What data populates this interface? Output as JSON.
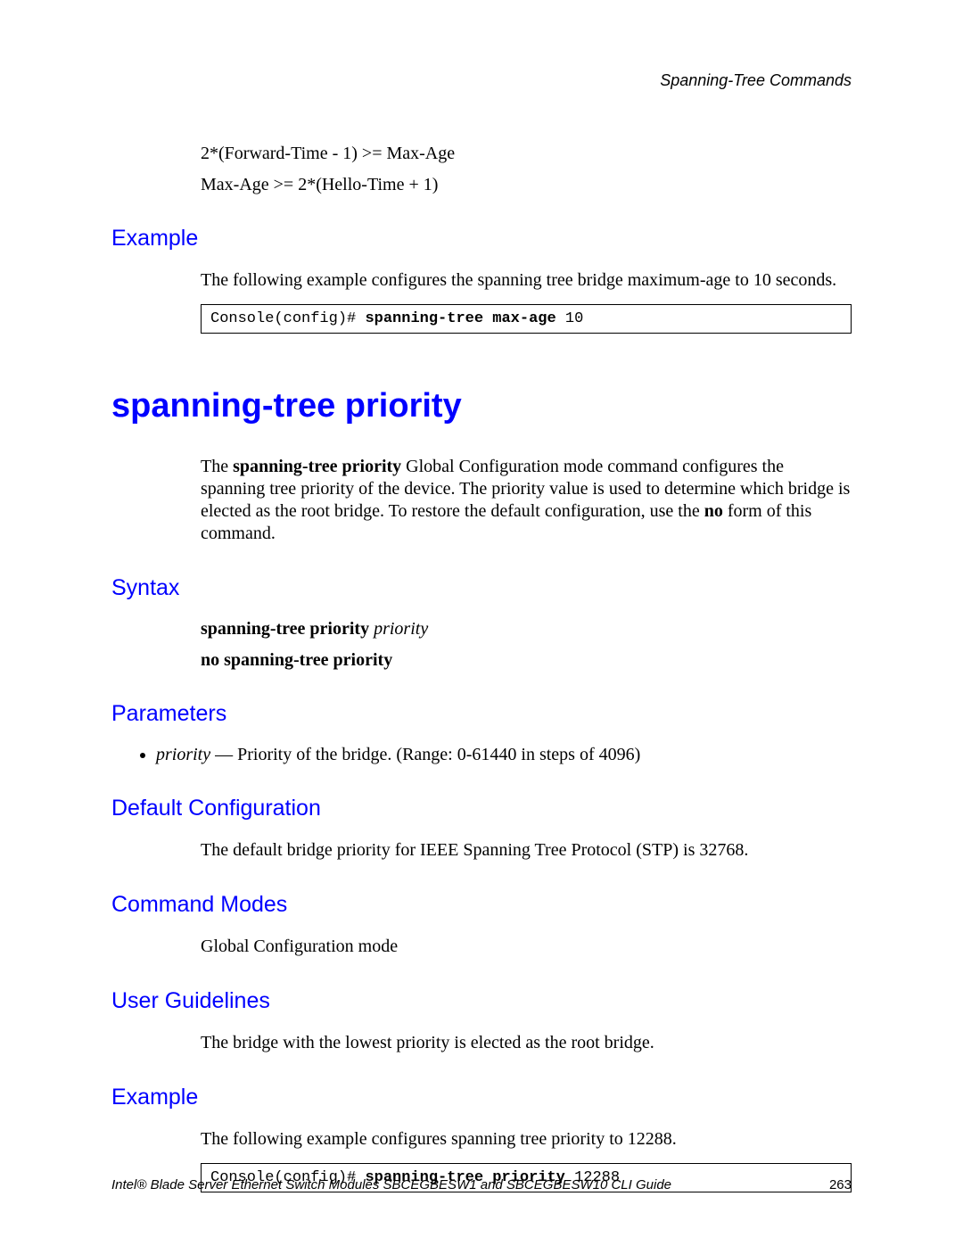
{
  "running_head": "Spanning-Tree Commands",
  "top_block": {
    "formulas": [
      "2*(Forward-Time - 1) >= Max-Age",
      "Max-Age >= 2*(Hello-Time + 1)"
    ],
    "example_label": "Example",
    "example_intro": "The following example configures the spanning tree bridge maximum-age to 10 seconds.",
    "code_prefix": "Console(config)# ",
    "code_bold": "spanning-tree max-age",
    "code_suffix": " 10"
  },
  "command": {
    "title": "spanning-tree priority",
    "description_parts": {
      "p1": "The ",
      "b1": "spanning-tree priority",
      "p2": " Global Configuration mode command configures the spanning tree priority of the device. The priority value is used to determine which bridge is elected as the root bridge. To restore the default configuration, use the ",
      "b2": "no",
      "p3": " form of this command."
    },
    "sections": {
      "syntax_label": "Syntax",
      "syntax_line1_bold": "spanning-tree priority",
      "syntax_line1_ital": " priority",
      "syntax_line2_bold": "no spanning-tree priority",
      "parameters_label": "Parameters",
      "param_ital": "priority",
      "param_rest": " — Priority of the bridge. (Range: 0-61440 in steps of 4096)",
      "default_label": "Default Configuration",
      "default_text": "The default bridge priority for IEEE Spanning Tree Protocol (STP) is 32768.",
      "modes_label": "Command Modes",
      "modes_text": "Global Configuration mode",
      "guidelines_label": "User Guidelines",
      "guidelines_text": "The bridge with the lowest priority is elected as the root bridge.",
      "example_label": "Example",
      "example_intro": "The following example configures spanning tree priority to 12288.",
      "code_prefix": "Console(config)# ",
      "code_bold": "spanning-tree priority",
      "code_suffix": " 12288"
    }
  },
  "footer": {
    "text": "Intel® Blade Server Ethernet Switch Modules SBCEGBESW1 and SBCEGBESW10 CLI Guide",
    "page": "263"
  }
}
